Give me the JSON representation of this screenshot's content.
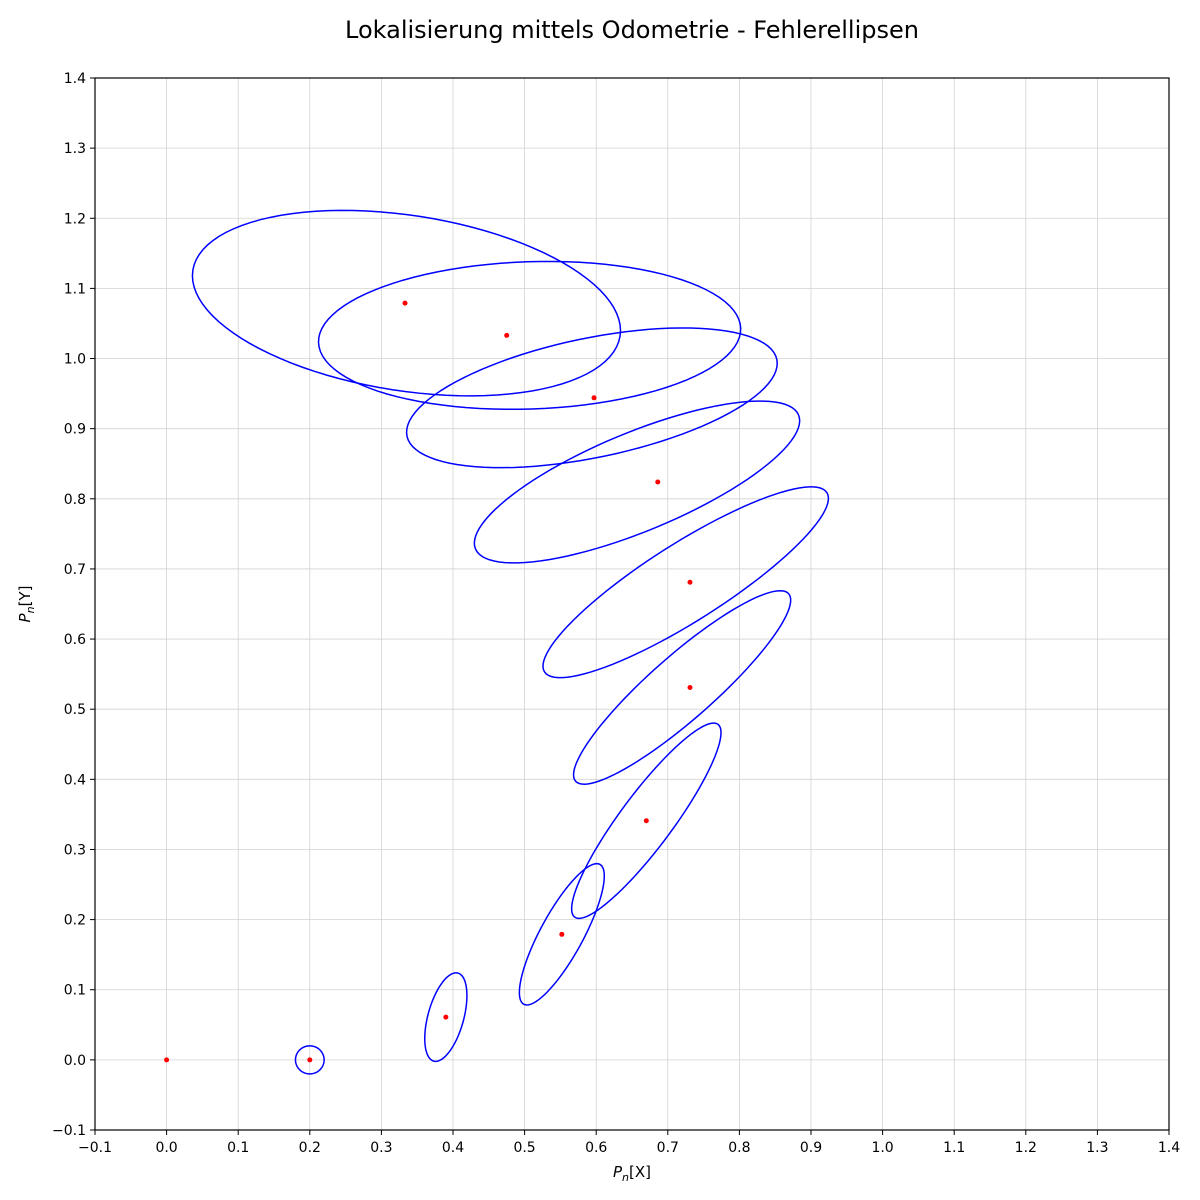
{
  "chart_data": {
    "type": "scatter",
    "title": "Lokalisierung mittels Odometrie - Fehlerellipsen",
    "xlabel": {
      "symbol": "P",
      "subscript": "n",
      "bracket": "[X]"
    },
    "ylabel": {
      "symbol": "P",
      "subscript": "n",
      "bracket": "[Y]"
    },
    "xlim": [
      -0.1,
      1.4
    ],
    "ylim": [
      -0.1,
      1.4
    ],
    "ticks": [
      -0.1,
      0.0,
      0.1,
      0.2,
      0.3,
      0.4,
      0.5,
      0.6,
      0.7,
      0.8,
      0.9,
      1.0,
      1.1,
      1.2,
      1.3,
      1.4
    ],
    "tick_labels": [
      "−0.1",
      "0.0",
      "0.1",
      "0.2",
      "0.3",
      "0.4",
      "0.5",
      "0.6",
      "0.7",
      "0.8",
      "0.9",
      "1.0",
      "1.1",
      "1.2",
      "1.3",
      "1.4"
    ],
    "grid": true,
    "colors": {
      "points": "#ff0000",
      "ellipses": "#0000ff",
      "grid": "#d3d3d3"
    },
    "points": [
      {
        "x": 0.0,
        "y": 0.0
      },
      {
        "x": 0.2,
        "y": 0.0
      },
      {
        "x": 0.39,
        "y": 0.061
      },
      {
        "x": 0.552,
        "y": 0.179
      },
      {
        "x": 0.67,
        "y": 0.341
      },
      {
        "x": 0.731,
        "y": 0.531
      },
      {
        "x": 0.731,
        "y": 0.681
      },
      {
        "x": 0.686,
        "y": 0.824
      },
      {
        "x": 0.597,
        "y": 0.944
      },
      {
        "x": 0.475,
        "y": 1.033
      },
      {
        "x": 0.333,
        "y": 1.079
      }
    ],
    "ellipses": [
      {
        "cx": 0.2,
        "cy": 0.0,
        "major": 0.02,
        "minor": 0.02,
        "angle_deg": 0
      },
      {
        "cx": 0.39,
        "cy": 0.061,
        "major": 0.065,
        "minor": 0.025,
        "angle_deg": 75
      },
      {
        "cx": 0.552,
        "cy": 0.179,
        "major": 0.113,
        "minor": 0.03,
        "angle_deg": 62
      },
      {
        "cx": 0.67,
        "cy": 0.341,
        "major": 0.17,
        "minor": 0.037,
        "angle_deg": 54
      },
      {
        "cx": 0.72,
        "cy": 0.531,
        "major": 0.2,
        "minor": 0.045,
        "angle_deg": 42
      },
      {
        "cx": 0.725,
        "cy": 0.681,
        "major": 0.235,
        "minor": 0.055,
        "angle_deg": 33
      },
      {
        "cx": 0.657,
        "cy": 0.824,
        "major": 0.245,
        "minor": 0.07,
        "angle_deg": 23
      },
      {
        "cx": 0.594,
        "cy": 0.944,
        "major": 0.264,
        "minor": 0.085,
        "angle_deg": 12
      },
      {
        "cx": 0.507,
        "cy": 1.033,
        "major": 0.295,
        "minor": 0.105,
        "angle_deg": 2
      },
      {
        "cx": 0.335,
        "cy": 1.079,
        "major": 0.302,
        "minor": 0.125,
        "angle_deg": -9
      }
    ]
  }
}
